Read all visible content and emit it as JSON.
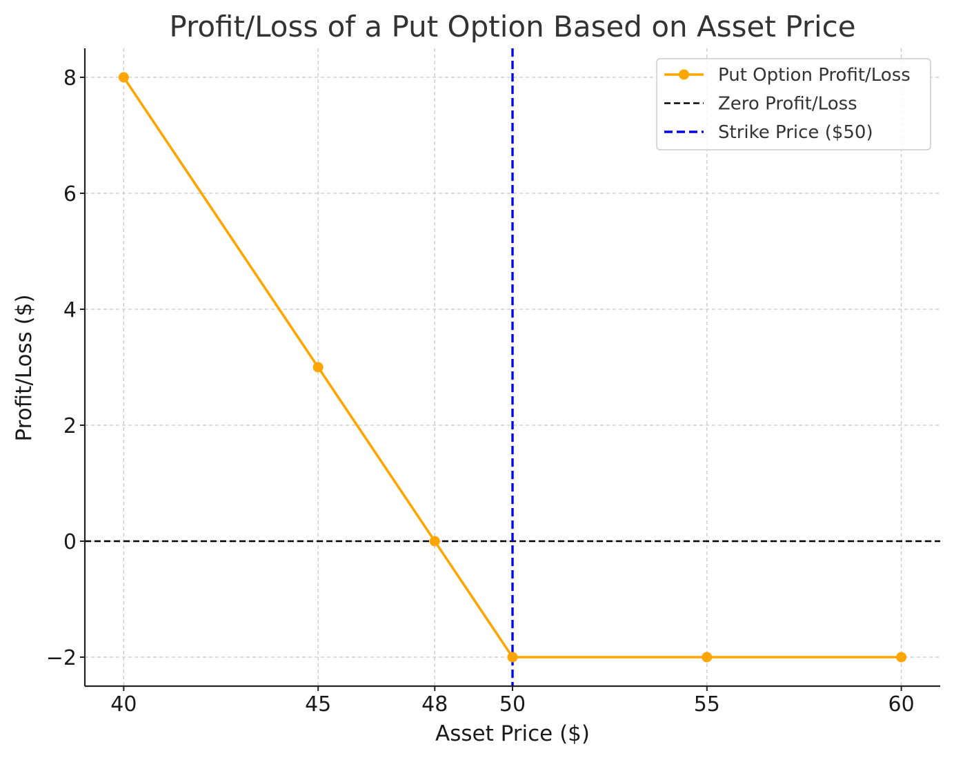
{
  "chart_data": {
    "type": "line",
    "title": "Profit/Loss of a Put Option Based on Asset Price",
    "xlabel": "Asset Price ($)",
    "ylabel": "Profit/Loss ($)",
    "xlim": [
      39,
      61
    ],
    "ylim": [
      -2.5,
      8.5
    ],
    "xticks": [
      40,
      45,
      48,
      50,
      55,
      60
    ],
    "xtick_labels": [
      "40",
      "45",
      "48",
      "50",
      "55",
      "60"
    ],
    "yticks": [
      -2,
      0,
      2,
      4,
      6,
      8
    ],
    "ytick_labels": [
      "−2",
      "0",
      "2",
      "4",
      "6",
      "8"
    ],
    "grid": true,
    "legend_position": "top-right",
    "series": [
      {
        "name": "Put Option Profit/Loss",
        "x": [
          40,
          45,
          48,
          50,
          55,
          60
        ],
        "y": [
          8,
          3,
          0,
          -2,
          -2,
          -2
        ],
        "color": "#ffa500",
        "style": "solid",
        "marker": "circle"
      }
    ],
    "reference_lines": [
      {
        "name": "Zero Profit/Loss",
        "orientation": "horizontal",
        "value": 0,
        "color": "#000000",
        "style": "dashed"
      },
      {
        "name": "Strike Price ($50)",
        "orientation": "vertical",
        "value": 50,
        "color": "#0000ff",
        "style": "dashed"
      }
    ]
  }
}
